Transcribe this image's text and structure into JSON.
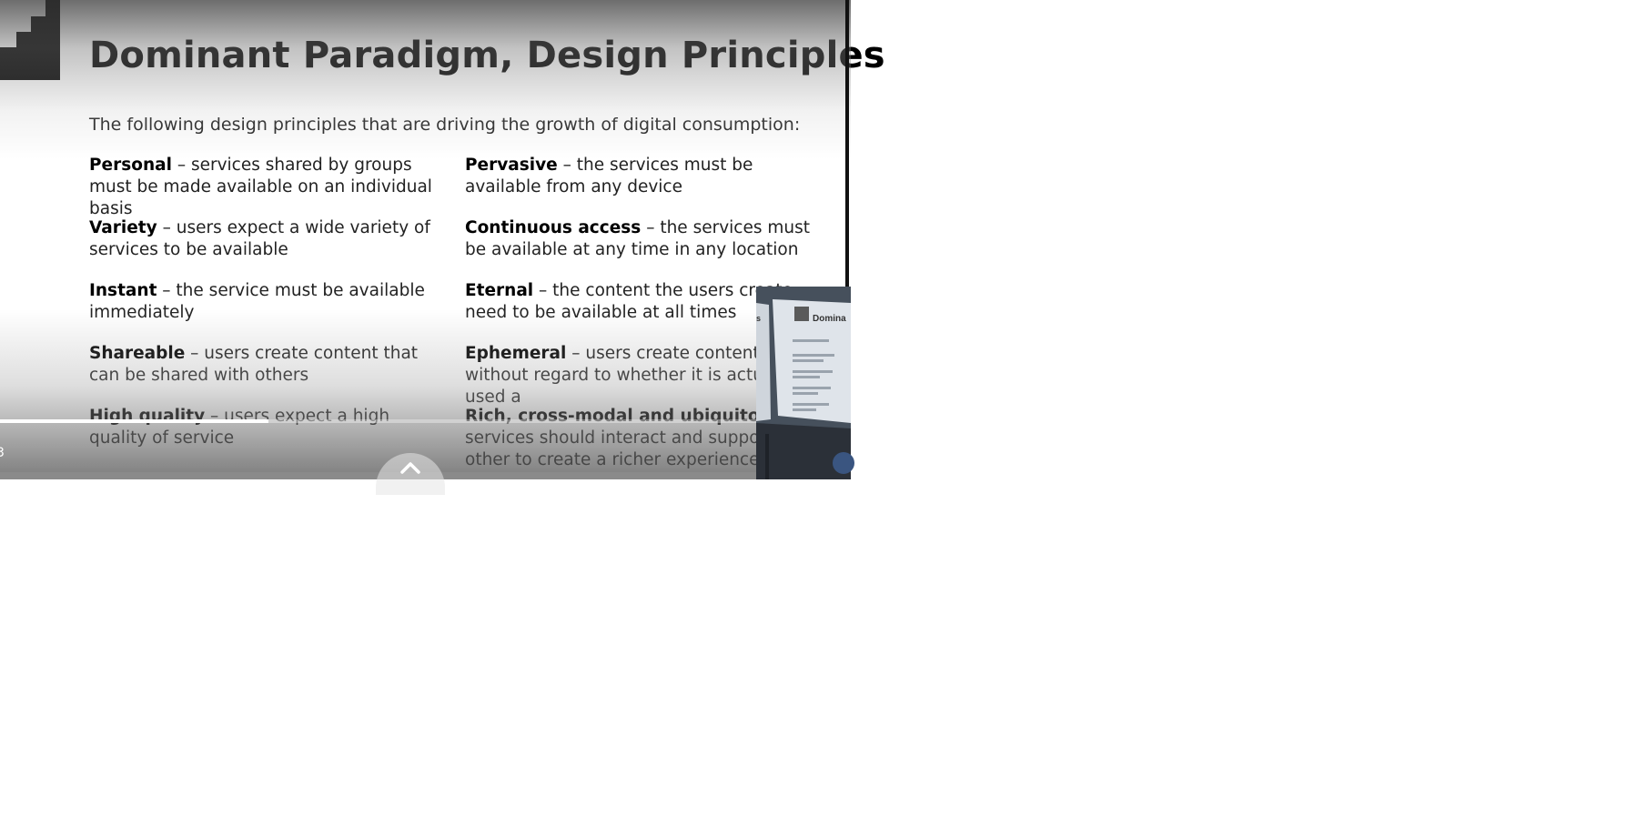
{
  "slide": {
    "title": "Dominant Paradigm, Design Principles",
    "intro": "The following design principles that are driving the growth of digital consumption:",
    "principles_left": [
      {
        "term": "Personal",
        "desc": " – services shared by groups must be made available on an individual basis"
      },
      {
        "term": "Variety",
        "desc": " – users expect a wide variety of services to be available"
      },
      {
        "term": "Instant",
        "desc": " – the service must be available immediately"
      },
      {
        "term": "Shareable",
        "desc": " – users create content that can be shared with others"
      },
      {
        "term": "High quality",
        "desc": " – users expect a high quality of service"
      }
    ],
    "principles_right": [
      {
        "term": "Pervasive",
        "desc": " – the services must be available from any device"
      },
      {
        "term": "Continuous access",
        "desc": " – the services must be available at any time in any location"
      },
      {
        "term": "Eternal",
        "desc": " – the content the users create need to be available at all times"
      },
      {
        "term": "Ephemeral",
        "desc": " – users create content without regard to whether it is actually used a"
      },
      {
        "term": "Rich, cross-modal and ubiquitous",
        "desc": " – services should interact and support e other to create a richer experience"
      }
    ]
  },
  "player": {
    "time_label": "3",
    "progress_fraction": 0.315,
    "expand_icon": "chevron-up-icon"
  },
  "camera_view": {
    "slide_title_fragment": "Domina",
    "left_fragment": "s"
  },
  "colors": {
    "title": "#000000",
    "text": "#222222",
    "progress": "#ffffff",
    "camera_bg": "#44505e"
  }
}
